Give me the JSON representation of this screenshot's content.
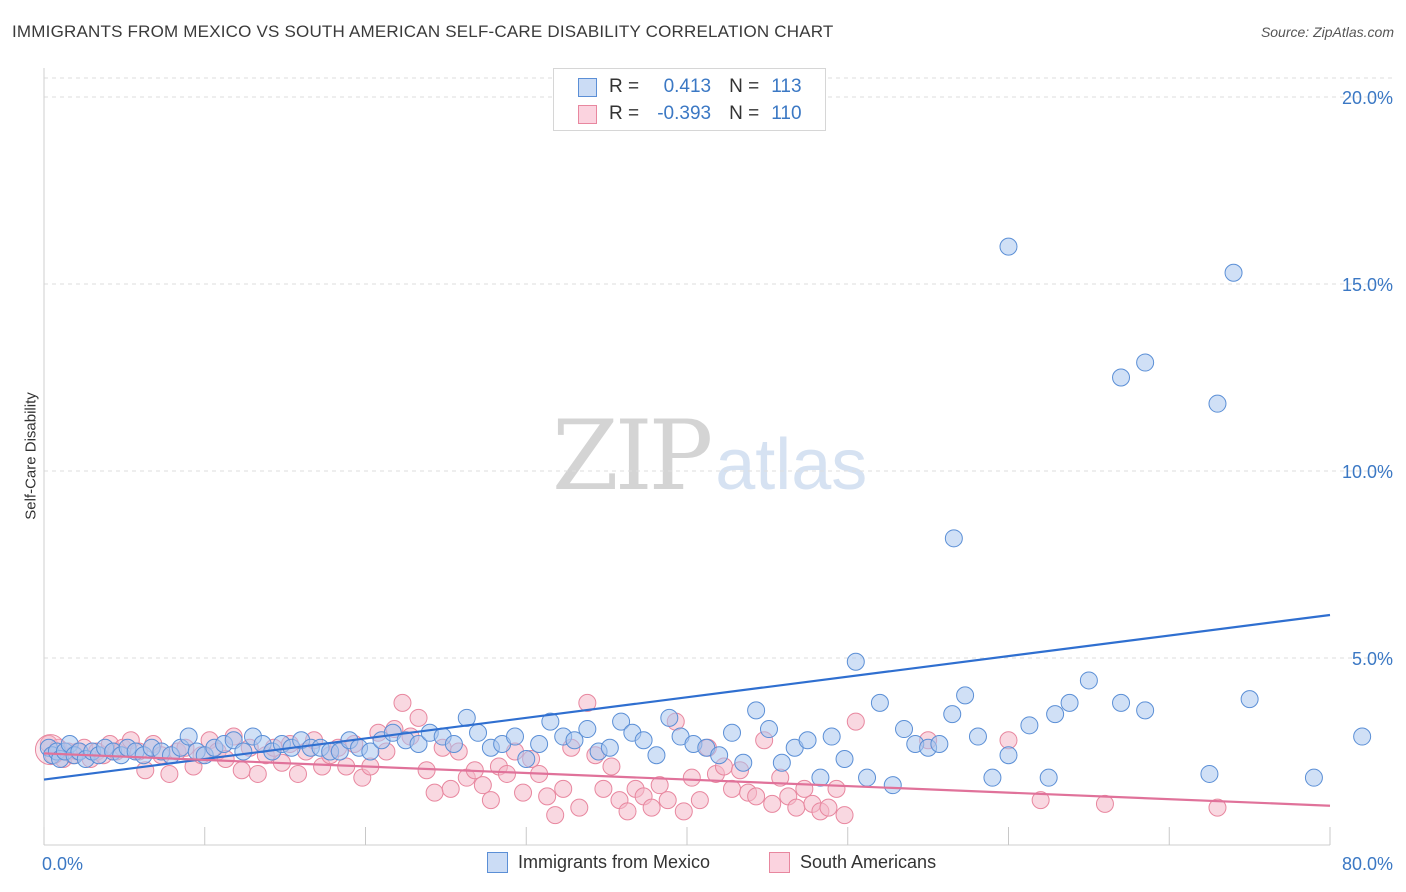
{
  "header": {
    "title": "IMMIGRANTS FROM MEXICO VS SOUTH AMERICAN SELF-CARE DISABILITY CORRELATION CHART",
    "source": "Source: ZipAtlas.com"
  },
  "watermark": {
    "zip": "ZIP",
    "atlas": "atlas"
  },
  "legend": {
    "rows": [
      {
        "r_label": "R =",
        "r_value": "0.413",
        "n_label": "N =",
        "n_value": "113",
        "color": "#a9c6ef"
      },
      {
        "r_label": "R =",
        "r_value": "-0.393",
        "n_label": "N =",
        "n_value": "110",
        "color": "#f4b8c9"
      }
    ]
  },
  "bottom_legend": [
    {
      "label": "Immigrants from Mexico",
      "color": "#a9c6ef"
    },
    {
      "label": "South Americans",
      "color": "#f4b8c9"
    }
  ],
  "chart_data": {
    "type": "scatter",
    "title": "IMMIGRANTS FROM MEXICO VS SOUTH AMERICAN SELF-CARE DISABILITY CORRELATION CHART",
    "xlabel": "",
    "ylabel": "Self-Care Disability",
    "xlim": [
      0,
      80
    ],
    "ylim": [
      0,
      20.7
    ],
    "x_tick_labels": [
      "0.0%",
      "80.0%"
    ],
    "y_ticks": [
      5,
      10,
      15,
      20
    ],
    "y_tick_labels": [
      "5.0%",
      "10.0%",
      "15.0%",
      "20.0%"
    ],
    "grid": "horizontal dashed",
    "legend_position": "top-center",
    "series": [
      {
        "name": "Immigrants from Mexico",
        "color": "#5b8fd6",
        "fill": "#a9c6ef",
        "trend_line": {
          "x": [
            0,
            80
          ],
          "y": [
            1.75,
            6.15
          ],
          "color": "#2f6fd0"
        },
        "points": [
          [
            0.3,
            2.6
          ],
          [
            0.5,
            2.4
          ],
          [
            0.8,
            2.5
          ],
          [
            1.0,
            2.3
          ],
          [
            1.3,
            2.5
          ],
          [
            1.6,
            2.7
          ],
          [
            1.9,
            2.4
          ],
          [
            2.2,
            2.5
          ],
          [
            2.6,
            2.3
          ],
          [
            3.0,
            2.5
          ],
          [
            3.4,
            2.4
          ],
          [
            3.8,
            2.6
          ],
          [
            4.3,
            2.5
          ],
          [
            4.8,
            2.4
          ],
          [
            5.2,
            2.6
          ],
          [
            5.7,
            2.5
          ],
          [
            6.2,
            2.4
          ],
          [
            6.7,
            2.6
          ],
          [
            7.3,
            2.5
          ],
          [
            7.9,
            2.4
          ],
          [
            8.5,
            2.6
          ],
          [
            9.0,
            2.9
          ],
          [
            9.5,
            2.5
          ],
          [
            10.0,
            2.4
          ],
          [
            10.6,
            2.6
          ],
          [
            11.2,
            2.7
          ],
          [
            11.8,
            2.8
          ],
          [
            12.4,
            2.5
          ],
          [
            13.0,
            2.9
          ],
          [
            13.6,
            2.7
          ],
          [
            14.2,
            2.5
          ],
          [
            14.8,
            2.7
          ],
          [
            15.4,
            2.6
          ],
          [
            16.0,
            2.8
          ],
          [
            16.6,
            2.6
          ],
          [
            17.2,
            2.6
          ],
          [
            17.8,
            2.5
          ],
          [
            18.4,
            2.5
          ],
          [
            19.0,
            2.8
          ],
          [
            19.6,
            2.6
          ],
          [
            20.3,
            2.5
          ],
          [
            21.0,
            2.8
          ],
          [
            21.7,
            3.0
          ],
          [
            22.5,
            2.8
          ],
          [
            23.3,
            2.7
          ],
          [
            24.0,
            3.0
          ],
          [
            24.8,
            2.9
          ],
          [
            25.5,
            2.7
          ],
          [
            26.3,
            3.4
          ],
          [
            27.0,
            3.0
          ],
          [
            27.8,
            2.6
          ],
          [
            28.5,
            2.7
          ],
          [
            29.3,
            2.9
          ],
          [
            30.0,
            2.3
          ],
          [
            30.8,
            2.7
          ],
          [
            31.5,
            3.3
          ],
          [
            32.3,
            2.9
          ],
          [
            33.0,
            2.8
          ],
          [
            33.8,
            3.1
          ],
          [
            34.5,
            2.5
          ],
          [
            35.2,
            2.6
          ],
          [
            35.9,
            3.3
          ],
          [
            36.6,
            3.0
          ],
          [
            37.3,
            2.8
          ],
          [
            38.1,
            2.4
          ],
          [
            38.9,
            3.4
          ],
          [
            39.6,
            2.9
          ],
          [
            40.4,
            2.7
          ],
          [
            41.2,
            2.6
          ],
          [
            42.0,
            2.4
          ],
          [
            42.8,
            3.0
          ],
          [
            43.5,
            2.2
          ],
          [
            44.3,
            3.6
          ],
          [
            45.1,
            3.1
          ],
          [
            45.9,
            2.2
          ],
          [
            46.7,
            2.6
          ],
          [
            47.5,
            2.8
          ],
          [
            48.3,
            1.8
          ],
          [
            49.0,
            2.9
          ],
          [
            49.8,
            2.3
          ],
          [
            50.5,
            4.9
          ],
          [
            51.2,
            1.8
          ],
          [
            52.0,
            3.8
          ],
          [
            52.8,
            1.6
          ],
          [
            53.5,
            3.1
          ],
          [
            54.2,
            2.7
          ],
          [
            55.0,
            2.6
          ],
          [
            55.7,
            2.7
          ],
          [
            56.5,
            3.5
          ],
          [
            57.3,
            4.0
          ],
          [
            58.1,
            2.9
          ],
          [
            59.0,
            1.8
          ],
          [
            60.0,
            2.4
          ],
          [
            61.3,
            3.2
          ],
          [
            62.5,
            1.8
          ],
          [
            62.9,
            3.5
          ],
          [
            63.8,
            3.8
          ],
          [
            65.0,
            4.4
          ],
          [
            67.0,
            3.8
          ],
          [
            68.5,
            3.6
          ],
          [
            72.5,
            1.9
          ],
          [
            75.0,
            3.9
          ],
          [
            79.0,
            1.8
          ],
          [
            82.0,
            2.9
          ],
          [
            56.6,
            8.2
          ],
          [
            60.0,
            16.0
          ],
          [
            67.0,
            12.5
          ],
          [
            68.5,
            12.9
          ],
          [
            73.0,
            11.8
          ],
          [
            74.0,
            15.3
          ]
        ]
      },
      {
        "name": "South Americans",
        "color": "#e8879f",
        "fill": "#f4b8c9",
        "trend_line": {
          "x": [
            0,
            80
          ],
          "y": [
            2.45,
            1.05
          ],
          "color": "#e0729a"
        },
        "points": [
          [
            0.3,
            2.7
          ],
          [
            0.6,
            2.4
          ],
          [
            0.9,
            2.6
          ],
          [
            1.2,
            2.3
          ],
          [
            1.5,
            2.5
          ],
          [
            1.8,
            2.4
          ],
          [
            2.1,
            2.5
          ],
          [
            2.5,
            2.6
          ],
          [
            2.9,
            2.3
          ],
          [
            3.3,
            2.5
          ],
          [
            3.7,
            2.4
          ],
          [
            4.1,
            2.7
          ],
          [
            4.5,
            2.5
          ],
          [
            4.9,
            2.6
          ],
          [
            5.4,
            2.8
          ],
          [
            5.9,
            2.5
          ],
          [
            6.3,
            2.0
          ],
          [
            6.8,
            2.7
          ],
          [
            7.3,
            2.4
          ],
          [
            7.8,
            1.9
          ],
          [
            8.3,
            2.5
          ],
          [
            8.8,
            2.6
          ],
          [
            9.3,
            2.1
          ],
          [
            9.8,
            2.4
          ],
          [
            10.3,
            2.8
          ],
          [
            10.8,
            2.5
          ],
          [
            11.3,
            2.3
          ],
          [
            11.8,
            2.9
          ],
          [
            12.3,
            2.0
          ],
          [
            12.8,
            2.6
          ],
          [
            13.3,
            1.9
          ],
          [
            13.8,
            2.4
          ],
          [
            14.3,
            2.6
          ],
          [
            14.8,
            2.2
          ],
          [
            15.3,
            2.7
          ],
          [
            15.8,
            1.9
          ],
          [
            16.3,
            2.5
          ],
          [
            16.8,
            2.8
          ],
          [
            17.3,
            2.1
          ],
          [
            17.8,
            2.4
          ],
          [
            18.3,
            2.6
          ],
          [
            18.8,
            2.1
          ],
          [
            19.3,
            2.7
          ],
          [
            19.8,
            1.8
          ],
          [
            20.3,
            2.1
          ],
          [
            20.8,
            3.0
          ],
          [
            21.3,
            2.5
          ],
          [
            21.8,
            3.1
          ],
          [
            22.3,
            3.8
          ],
          [
            22.8,
            2.9
          ],
          [
            23.3,
            3.4
          ],
          [
            23.8,
            2.0
          ],
          [
            24.3,
            1.4
          ],
          [
            24.8,
            2.6
          ],
          [
            25.3,
            1.5
          ],
          [
            25.8,
            2.5
          ],
          [
            26.3,
            1.8
          ],
          [
            26.8,
            2.0
          ],
          [
            27.3,
            1.6
          ],
          [
            27.8,
            1.2
          ],
          [
            28.3,
            2.1
          ],
          [
            28.8,
            1.9
          ],
          [
            29.3,
            2.5
          ],
          [
            29.8,
            1.4
          ],
          [
            30.3,
            2.3
          ],
          [
            30.8,
            1.9
          ],
          [
            31.3,
            1.3
          ],
          [
            31.8,
            0.8
          ],
          [
            32.3,
            1.5
          ],
          [
            32.8,
            2.6
          ],
          [
            33.3,
            1.0
          ],
          [
            33.8,
            3.8
          ],
          [
            34.3,
            2.4
          ],
          [
            34.8,
            1.5
          ],
          [
            35.3,
            2.1
          ],
          [
            35.8,
            1.2
          ],
          [
            36.3,
            0.9
          ],
          [
            36.8,
            1.5
          ],
          [
            37.3,
            1.3
          ],
          [
            37.8,
            1.0
          ],
          [
            38.3,
            1.6
          ],
          [
            38.8,
            1.2
          ],
          [
            39.3,
            3.3
          ],
          [
            39.8,
            0.9
          ],
          [
            40.3,
            1.8
          ],
          [
            40.8,
            1.2
          ],
          [
            41.3,
            2.6
          ],
          [
            41.8,
            1.9
          ],
          [
            42.3,
            2.1
          ],
          [
            42.8,
            1.5
          ],
          [
            43.3,
            2.0
          ],
          [
            43.8,
            1.4
          ],
          [
            44.3,
            1.3
          ],
          [
            44.8,
            2.8
          ],
          [
            45.3,
            1.1
          ],
          [
            45.8,
            1.8
          ],
          [
            46.3,
            1.3
          ],
          [
            46.8,
            1.0
          ],
          [
            47.3,
            1.5
          ],
          [
            47.8,
            1.1
          ],
          [
            48.3,
            0.9
          ],
          [
            48.8,
            1.0
          ],
          [
            49.3,
            1.5
          ],
          [
            49.8,
            0.8
          ],
          [
            50.5,
            3.3
          ],
          [
            55.0,
            2.8
          ],
          [
            60.0,
            2.8
          ],
          [
            62.0,
            1.2
          ],
          [
            66.0,
            1.1
          ],
          [
            73.0,
            1.0
          ]
        ]
      }
    ]
  }
}
